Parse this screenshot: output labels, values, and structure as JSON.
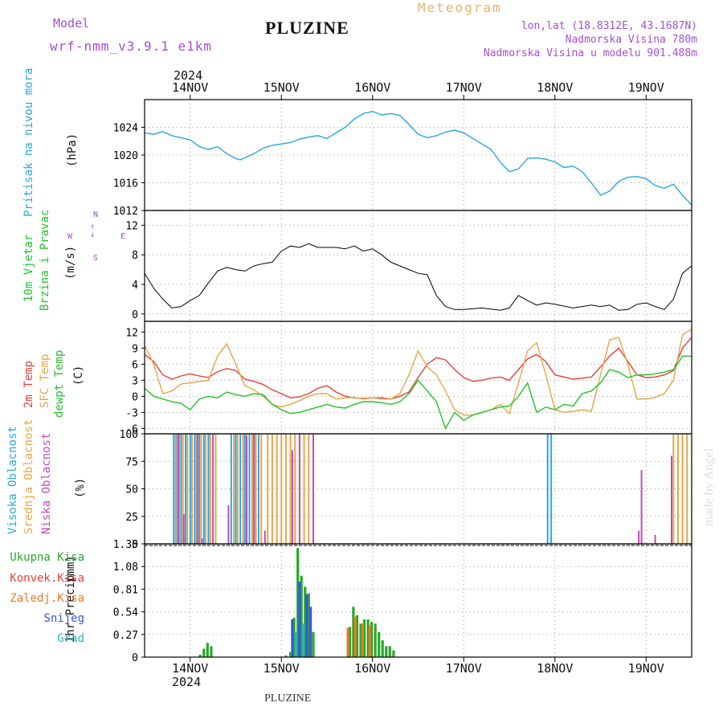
{
  "header": {
    "model_label": "Model",
    "model_name": "wrf-nmm_v3.9.1 e1km",
    "title": "PLUZINE",
    "meteogram": "Meteogram",
    "lonlat": "lon,lat (18.8312E, 43.1687N)",
    "altitude": "Nadmorska Visina 780m",
    "model_altitude": "Nadmorska Visina u modelu 901.488m",
    "year_top": "2024",
    "year_bottom": "2024",
    "footer": "PLUZINE",
    "credit": "made by Angel"
  },
  "colors": {
    "pressure": "#2aa7e0",
    "temp2m": "#e8413a",
    "sfc": "#e6a54a",
    "dewpt": "#22c22a",
    "high": "#2aa7e0",
    "mid": "#e6a54a",
    "low": "#c24bb8",
    "total": "#28a828",
    "conv": "#e8413a",
    "frz": "#e87a2a",
    "snow": "#3a55e0",
    "grad": "#2ab8b0"
  },
  "chart_data": [
    {
      "type": "line",
      "title": "",
      "ylabel": "Pritisak na nivou mora",
      "unit": "(hPa)",
      "ylim": [
        1012,
        1028
      ],
      "yticks": [
        1012,
        1016,
        1020,
        1024
      ],
      "xlim": [
        13.5,
        19.5
      ],
      "x_ticks": [
        "14NOV",
        "15NOV",
        "16NOV",
        "17NOV",
        "18NOV",
        "19NOV"
      ],
      "series": [
        {
          "key": "pressure",
          "x": [
            13.5,
            13.6,
            13.7,
            13.8,
            13.9,
            14.0,
            14.1,
            14.2,
            14.3,
            14.4,
            14.5,
            14.55,
            14.6,
            14.7,
            14.8,
            14.9,
            15.0,
            15.1,
            15.2,
            15.3,
            15.4,
            15.5,
            15.6,
            15.7,
            15.8,
            15.9,
            16.0,
            16.1,
            16.2,
            16.3,
            16.4,
            16.5,
            16.6,
            16.7,
            16.8,
            16.9,
            17.0,
            17.1,
            17.2,
            17.3,
            17.4,
            17.5,
            17.6,
            17.7,
            17.8,
            17.9,
            18.0,
            18.1,
            18.2,
            18.3,
            18.4,
            18.5,
            18.6,
            18.7,
            18.8,
            18.9,
            19.0,
            19.1,
            19.2,
            19.3,
            19.4,
            19.5
          ],
          "y": [
            1023.2,
            1023.0,
            1023.4,
            1022.8,
            1022.5,
            1022.2,
            1021.2,
            1020.8,
            1021.2,
            1020.2,
            1019.5,
            1019.3,
            1019.6,
            1020.2,
            1021.0,
            1021.4,
            1021.6,
            1021.8,
            1022.3,
            1022.6,
            1022.8,
            1022.4,
            1023.2,
            1024.0,
            1025.2,
            1026.0,
            1026.3,
            1025.8,
            1026.0,
            1025.7,
            1024.4,
            1023.0,
            1022.5,
            1022.8,
            1023.3,
            1023.6,
            1023.2,
            1022.4,
            1021.6,
            1020.8,
            1019.0,
            1017.6,
            1018.0,
            1019.5,
            1019.6,
            1019.4,
            1019.0,
            1018.2,
            1018.4,
            1017.6,
            1016.0,
            1014.2,
            1014.8,
            1016.2,
            1016.8,
            1016.9,
            1016.6,
            1015.6,
            1015.2,
            1015.8,
            1014.2,
            1012.8
          ]
        }
      ]
    },
    {
      "type": "line",
      "title": "",
      "ylabel": [
        "10m Vjetar",
        "Brzina i Pravac"
      ],
      "unit": "(m/s)",
      "compass": [
        "N",
        "W",
        "E",
        "S"
      ],
      "ylim": [
        -1,
        14
      ],
      "yticks": [
        0,
        4,
        8,
        12
      ],
      "series": [
        {
          "key": "wind_speed",
          "x": [
            13.5,
            13.6,
            13.7,
            13.8,
            13.9,
            14.0,
            14.1,
            14.2,
            14.3,
            14.4,
            14.5,
            14.6,
            14.7,
            14.8,
            14.9,
            15.0,
            15.1,
            15.2,
            15.3,
            15.4,
            15.5,
            15.6,
            15.7,
            15.8,
            15.9,
            16.0,
            16.1,
            16.2,
            16.3,
            16.4,
            16.5,
            16.6,
            16.7,
            16.8,
            16.9,
            17.0,
            17.2,
            17.4,
            17.5,
            17.6,
            17.7,
            17.8,
            17.9,
            18.0,
            18.2,
            18.4,
            18.5,
            18.6,
            18.7,
            18.8,
            18.9,
            19.0,
            19.1,
            19.2,
            19.3,
            19.4,
            19.5
          ],
          "y": [
            5.5,
            3.5,
            2.0,
            0.8,
            1.0,
            1.8,
            2.5,
            4.2,
            5.8,
            6.3,
            6.0,
            5.8,
            6.5,
            6.8,
            7.0,
            8.5,
            9.2,
            9.0,
            9.5,
            9.0,
            9.0,
            9.0,
            8.8,
            9.2,
            8.5,
            8.8,
            8.0,
            7.0,
            6.5,
            6.0,
            5.5,
            5.3,
            2.5,
            1.0,
            0.6,
            0.6,
            0.8,
            0.5,
            0.8,
            2.5,
            1.8,
            1.2,
            1.5,
            1.3,
            0.8,
            1.2,
            1.0,
            1.2,
            0.5,
            0.6,
            1.3,
            1.5,
            1.0,
            0.6,
            2.0,
            5.5,
            6.5
          ]
        }
      ]
    },
    {
      "type": "line",
      "title": "",
      "ylabel": [
        "2m Temp",
        "SFC Temp",
        "dewpt Temp"
      ],
      "unit": "(C)",
      "ylim": [
        -7,
        14
      ],
      "yticks": [
        -6,
        -3,
        0,
        3,
        6,
        9,
        12
      ],
      "series": [
        {
          "key": "temp2m",
          "x": [
            13.5,
            13.6,
            13.7,
            13.8,
            13.9,
            14.0,
            14.1,
            14.2,
            14.3,
            14.4,
            14.5,
            14.6,
            14.7,
            14.8,
            14.9,
            15.0,
            15.1,
            15.2,
            15.3,
            15.4,
            15.5,
            15.6,
            15.7,
            15.8,
            15.9,
            16.0,
            16.1,
            16.2,
            16.3,
            16.4,
            16.5,
            16.6,
            16.7,
            16.8,
            16.9,
            17.0,
            17.1,
            17.2,
            17.3,
            17.4,
            17.5,
            17.6,
            17.7,
            17.8,
            17.9,
            18.0,
            18.1,
            18.2,
            18.3,
            18.4,
            18.5,
            18.6,
            18.7,
            18.8,
            18.9,
            19.0,
            19.1,
            19.2,
            19.3,
            19.4,
            19.5
          ],
          "y": [
            7.8,
            6.5,
            4.0,
            3.2,
            3.8,
            4.2,
            3.8,
            3.5,
            4.6,
            5.2,
            4.8,
            3.2,
            2.8,
            2.2,
            1.2,
            0.5,
            -0.3,
            -0.1,
            0.5,
            1.5,
            2.0,
            0.8,
            0.0,
            -0.3,
            -0.4,
            -0.3,
            -0.4,
            -0.5,
            0.0,
            0.8,
            3.5,
            6.0,
            7.2,
            6.8,
            5.0,
            3.5,
            2.8,
            3.0,
            3.4,
            3.6,
            3.0,
            5.0,
            7.0,
            7.8,
            6.5,
            4.0,
            3.6,
            3.2,
            3.4,
            3.6,
            5.5,
            7.5,
            9.0,
            6.5,
            4.0,
            3.5,
            3.6,
            4.0,
            4.8,
            9.0,
            11.0
          ]
        },
        {
          "key": "sfc",
          "x": [
            13.5,
            13.6,
            13.7,
            13.8,
            13.9,
            14.0,
            14.1,
            14.2,
            14.3,
            14.4,
            14.5,
            14.6,
            14.7,
            14.8,
            14.9,
            15.0,
            15.1,
            15.2,
            15.3,
            15.4,
            15.5,
            15.6,
            15.7,
            15.8,
            15.9,
            16.0,
            16.1,
            16.2,
            16.3,
            16.4,
            16.5,
            16.6,
            16.7,
            16.8,
            16.9,
            17.0,
            17.1,
            17.2,
            17.3,
            17.4,
            17.5,
            17.6,
            17.7,
            17.8,
            17.9,
            18.0,
            18.1,
            18.2,
            18.3,
            18.4,
            18.5,
            18.6,
            18.7,
            18.8,
            18.9,
            19.0,
            19.1,
            19.2,
            19.3,
            19.4,
            19.5
          ],
          "y": [
            9.5,
            6.0,
            0.5,
            1.0,
            2.3,
            2.5,
            2.8,
            3.0,
            7.5,
            9.8,
            6.0,
            2.0,
            1.2,
            0.0,
            -1.5,
            -2.0,
            -1.5,
            -0.8,
            0.0,
            0.5,
            0.5,
            -0.5,
            -0.3,
            -0.2,
            -0.5,
            -0.3,
            -0.2,
            -0.5,
            0.5,
            4.0,
            8.5,
            5.5,
            4.0,
            1.0,
            -2.5,
            -3.5,
            -3.5,
            -3.0,
            -2.5,
            -1.5,
            -3.2,
            2.5,
            8.5,
            10.0,
            4.0,
            -2.5,
            -3.0,
            -2.8,
            -2.5,
            -2.8,
            4.0,
            10.5,
            11.0,
            6.0,
            -0.5,
            -0.5,
            -0.2,
            0.5,
            3.0,
            11.5,
            12.5
          ]
        },
        {
          "key": "dewpt",
          "x": [
            13.5,
            13.6,
            13.7,
            13.8,
            13.9,
            14.0,
            14.1,
            14.2,
            14.3,
            14.4,
            14.5,
            14.6,
            14.7,
            14.8,
            14.9,
            15.0,
            15.1,
            15.2,
            15.3,
            15.4,
            15.5,
            15.6,
            15.7,
            15.8,
            15.9,
            16.0,
            16.1,
            16.2,
            16.3,
            16.4,
            16.5,
            16.6,
            16.7,
            16.8,
            16.9,
            17.0,
            17.1,
            17.2,
            17.3,
            17.4,
            17.5,
            17.6,
            17.7,
            17.8,
            17.9,
            18.0,
            18.1,
            18.2,
            18.3,
            18.4,
            18.5,
            18.6,
            18.7,
            18.8,
            18.9,
            19.0,
            19.1,
            19.2,
            19.3,
            19.4,
            19.5
          ],
          "y": [
            1.5,
            0.0,
            -0.5,
            -1.0,
            -1.3,
            -2.5,
            -0.5,
            0.0,
            -0.3,
            0.8,
            0.3,
            0.0,
            0.5,
            0.3,
            -1.5,
            -2.5,
            -3.2,
            -3.0,
            -2.5,
            -2.0,
            -1.5,
            -2.0,
            -2.2,
            -1.5,
            -1.0,
            -1.0,
            -1.2,
            -1.5,
            -1.0,
            0.5,
            3.0,
            1.0,
            -1.0,
            -6.0,
            -3.0,
            -4.5,
            -3.5,
            -3.0,
            -2.5,
            -2.0,
            -1.8,
            0.0,
            2.5,
            -3.0,
            -2.0,
            -2.5,
            -1.5,
            -1.8,
            0.5,
            1.0,
            2.5,
            5.0,
            4.5,
            3.5,
            4.0,
            4.0,
            4.2,
            4.5,
            5.0,
            7.5,
            7.5
          ]
        }
      ]
    },
    {
      "type": "bar",
      "title": "",
      "ylabel": [
        "Visoka Oblacnost",
        "Srednja Oblacnost",
        "Niska Oblacnost"
      ],
      "unit": "(%)",
      "ylim": [
        0,
        100
      ],
      "yticks": [
        0,
        25,
        50,
        75,
        100
      ],
      "series": [
        {
          "key": "high",
          "x": [
            13.82,
            13.85,
            13.9,
            13.95,
            14.0,
            14.05,
            14.1,
            14.15,
            14.2,
            14.45,
            14.5,
            14.55,
            14.6,
            14.65,
            14.7,
            14.75,
            17.92,
            17.96
          ],
          "values": [
            100,
            100,
            100,
            100,
            100,
            100,
            100,
            100,
            100,
            100,
            100,
            100,
            100,
            100,
            100,
            100,
            100,
            100
          ]
        },
        {
          "key": "mid",
          "x": [
            13.84,
            13.88,
            13.92,
            13.97,
            14.02,
            14.07,
            14.12,
            14.17,
            14.22,
            14.28,
            14.48,
            14.52,
            14.58,
            14.62,
            14.68,
            14.72,
            14.78,
            14.85,
            14.9,
            14.95,
            15.0,
            15.05,
            15.1,
            15.15,
            15.2,
            15.25,
            15.3,
            19.3,
            19.35,
            19.4,
            19.45
          ],
          "values": [
            100,
            100,
            100,
            100,
            100,
            100,
            100,
            100,
            100,
            100,
            100,
            100,
            100,
            100,
            100,
            100,
            100,
            100,
            100,
            100,
            100,
            100,
            100,
            100,
            100,
            100,
            100,
            100,
            100,
            100,
            100
          ]
        },
        {
          "key": "low",
          "x": [
            13.87,
            13.93,
            14.08,
            14.13,
            14.25,
            14.42,
            14.62,
            14.7,
            14.82,
            15.12,
            15.2,
            15.35,
            18.92,
            18.95,
            19.1,
            19.28
          ],
          "values": [
            100,
            27,
            100,
            5,
            100,
            35,
            98,
            100,
            12,
            85,
            100,
            100,
            12,
            67,
            8,
            80
          ]
        }
      ]
    },
    {
      "type": "bar",
      "title": "",
      "ylabel": "1hr Precip",
      "unit": "(mm)",
      "legend": [
        "Ukupna Kisa",
        "Konvek.Kisa",
        "Zaledj.Kisa",
        "Snijeg",
        "Grad"
      ],
      "ylim": [
        0,
        1.35
      ],
      "yticks": [
        0,
        0.27,
        0.54,
        0.81,
        1.08,
        1.35
      ],
      "ytick_labels": [
        "0",
        "0.27",
        "0.54",
        "0.81",
        "1.08",
        "1.35"
      ],
      "series": [
        {
          "key": "total",
          "x": [
            14.11,
            14.15,
            14.19,
            14.23,
            15.05,
            15.1,
            15.14,
            15.18,
            15.22,
            15.26,
            15.3,
            15.35,
            15.75,
            15.79,
            15.83,
            15.87,
            15.91,
            15.95,
            15.99,
            16.03,
            16.07,
            16.11,
            16.15,
            16.19,
            16.23
          ],
          "values": [
            0.03,
            0.1,
            0.17,
            0.13,
            0.02,
            0.06,
            0.47,
            1.3,
            0.97,
            0.84,
            0.76,
            0.3,
            0.36,
            0.6,
            0.5,
            0.4,
            0.45,
            0.45,
            0.42,
            0.4,
            0.3,
            0.2,
            0.13,
            0.13,
            0.08
          ]
        },
        {
          "key": "frz",
          "x": [
            15.73,
            15.81,
            15.89,
            15.97
          ],
          "values": [
            0.35,
            0.48,
            0.4,
            0.38
          ]
        },
        {
          "key": "snow",
          "x": [
            15.12,
            15.2,
            15.28,
            15.32
          ],
          "values": [
            0.45,
            0.9,
            0.75,
            0.6
          ]
        },
        {
          "key": "grad",
          "x": [
            15.16,
            15.24
          ],
          "values": [
            0.3,
            0.4
          ]
        }
      ]
    }
  ]
}
